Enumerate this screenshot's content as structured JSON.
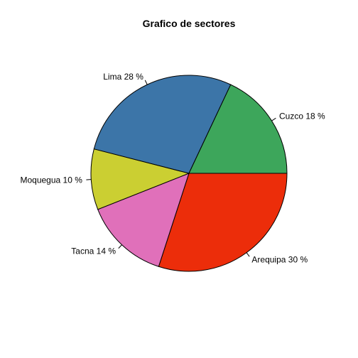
{
  "chart_data": {
    "type": "pie",
    "title": "Grafico de sectores",
    "categories": [
      "Arequipa",
      "Tacna",
      "Moquegua",
      "Lima",
      "Cuzco"
    ],
    "values": [
      30,
      14,
      10,
      28,
      18
    ],
    "labels": [
      "Arequipa 30 %",
      "Tacna 14 %",
      "Moquegua 10 %",
      "Lima 28 %",
      "Cuzco 18 %"
    ],
    "colors": [
      "#EC2D0A",
      "#E070BA",
      "#CBCF32",
      "#3C75A8",
      "#3DA65B"
    ],
    "direction": "clockwise",
    "start": "3 o'clock",
    "legend": "none"
  }
}
